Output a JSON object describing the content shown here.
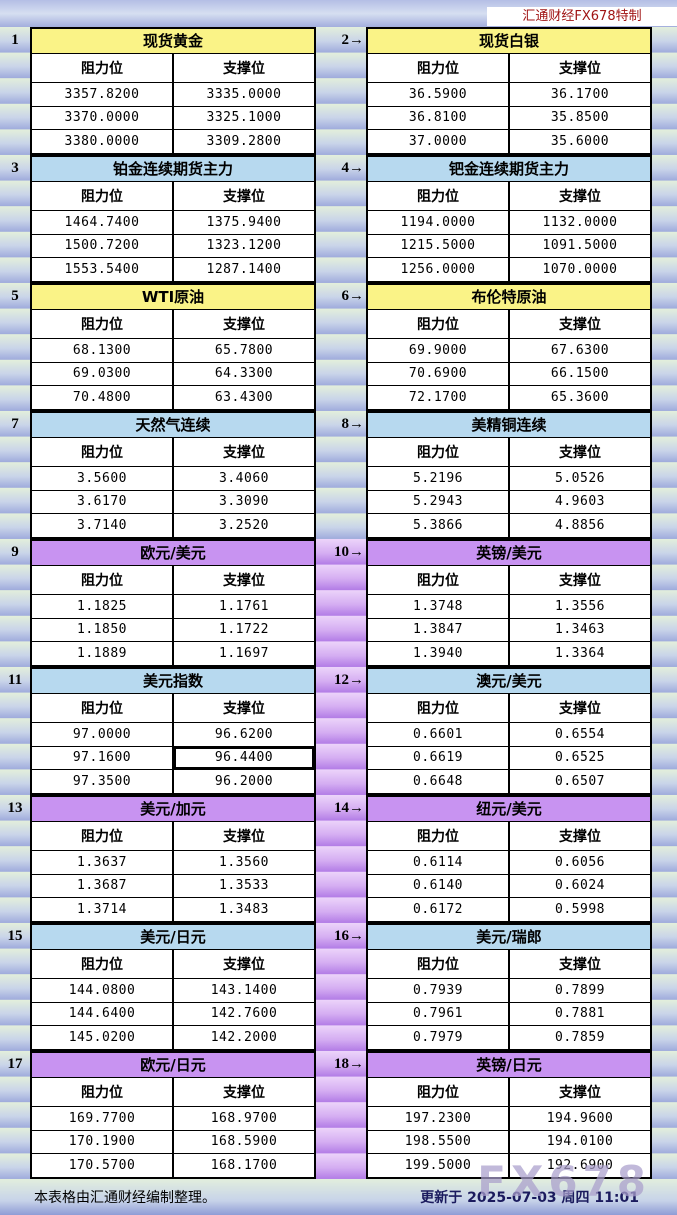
{
  "header": {
    "brand": "汇通财经FX678特制"
  },
  "column_headers": {
    "resistance": "阻力位",
    "support": "支撑位"
  },
  "panels": [
    {
      "num": "1",
      "title": "现货黄金",
      "theme": "yellow",
      "rows": [
        [
          "3357.8200",
          "3335.0000"
        ],
        [
          "3370.0000",
          "3325.1000"
        ],
        [
          "3380.0000",
          "3309.2800"
        ]
      ]
    },
    {
      "num": "2",
      "pointer": "2→",
      "title": "现货白银",
      "theme": "yellow",
      "rows": [
        [
          "36.5900",
          "36.1700"
        ],
        [
          "36.8100",
          "35.8500"
        ],
        [
          "37.0000",
          "35.6000"
        ]
      ]
    },
    {
      "num": "3",
      "title": "铂金连续期货主力",
      "theme": "blue",
      "rows": [
        [
          "1464.7400",
          "1375.9400"
        ],
        [
          "1500.7200",
          "1323.1200"
        ],
        [
          "1553.5400",
          "1287.1400"
        ]
      ]
    },
    {
      "num": "4",
      "pointer": "4→",
      "title": "钯金连续期货主力",
      "theme": "blue",
      "rows": [
        [
          "1194.0000",
          "1132.0000"
        ],
        [
          "1215.5000",
          "1091.5000"
        ],
        [
          "1256.0000",
          "1070.0000"
        ]
      ]
    },
    {
      "num": "5",
      "title": "WTI原油",
      "theme": "yellow",
      "rows": [
        [
          "68.1300",
          "65.7800"
        ],
        [
          "69.0300",
          "64.3300"
        ],
        [
          "70.4800",
          "63.4300"
        ]
      ]
    },
    {
      "num": "6",
      "pointer": "6→",
      "title": "布伦特原油",
      "theme": "yellow",
      "rows": [
        [
          "69.9000",
          "67.6300"
        ],
        [
          "70.6900",
          "66.1500"
        ],
        [
          "72.1700",
          "65.3600"
        ]
      ]
    },
    {
      "num": "7",
      "title": "天然气连续",
      "theme": "blue",
      "rows": [
        [
          "3.5600",
          "3.4060"
        ],
        [
          "3.6170",
          "3.3090"
        ],
        [
          "3.7140",
          "3.2520"
        ]
      ]
    },
    {
      "num": "8",
      "pointer": "8→",
      "title": "美精铜连续",
      "theme": "blue",
      "rows": [
        [
          "5.2196",
          "5.0526"
        ],
        [
          "5.2943",
          "4.9603"
        ],
        [
          "5.3866",
          "4.8856"
        ]
      ]
    },
    {
      "num": "9",
      "title": "欧元/美元",
      "theme": "purple",
      "rows": [
        [
          "1.1825",
          "1.1761"
        ],
        [
          "1.1850",
          "1.1722"
        ],
        [
          "1.1889",
          "1.1697"
        ]
      ]
    },
    {
      "num": "10",
      "pointer": "10→",
      "title": "英镑/美元",
      "theme": "purple",
      "rows": [
        [
          "1.3748",
          "1.3556"
        ],
        [
          "1.3847",
          "1.3463"
        ],
        [
          "1.3940",
          "1.3364"
        ]
      ]
    },
    {
      "num": "11",
      "title": "美元指数",
      "theme": "blue",
      "rows": [
        [
          "97.0000",
          "96.6200"
        ],
        [
          "97.1600",
          "96.4400"
        ],
        [
          "97.3500",
          "96.2000"
        ]
      ]
    },
    {
      "num": "12",
      "pointer": "12→",
      "title": "澳元/美元",
      "theme": "blue",
      "rows": [
        [
          "0.6601",
          "0.6554"
        ],
        [
          "0.6619",
          "0.6525"
        ],
        [
          "0.6648",
          "0.6507"
        ]
      ]
    },
    {
      "num": "13",
      "title": "美元/加元",
      "theme": "purple",
      "rows": [
        [
          "1.3637",
          "1.3560"
        ],
        [
          "1.3687",
          "1.3533"
        ],
        [
          "1.3714",
          "1.3483"
        ]
      ]
    },
    {
      "num": "14",
      "pointer": "14→",
      "title": "纽元/美元",
      "theme": "purple",
      "rows": [
        [
          "0.6114",
          "0.6056"
        ],
        [
          "0.6140",
          "0.6024"
        ],
        [
          "0.6172",
          "0.5998"
        ]
      ]
    },
    {
      "num": "15",
      "title": "美元/日元",
      "theme": "blue",
      "rows": [
        [
          "144.0800",
          "143.1400"
        ],
        [
          "144.6400",
          "142.7600"
        ],
        [
          "145.0200",
          "142.2000"
        ]
      ]
    },
    {
      "num": "16",
      "pointer": "16→",
      "title": "美元/瑞郎",
      "theme": "blue",
      "rows": [
        [
          "0.7939",
          "0.7899"
        ],
        [
          "0.7961",
          "0.7881"
        ],
        [
          "0.7979",
          "0.7859"
        ]
      ]
    },
    {
      "num": "17",
      "title": "欧元/日元",
      "theme": "purple",
      "rows": [
        [
          "169.7700",
          "168.9700"
        ],
        [
          "170.1900",
          "168.5900"
        ],
        [
          "170.5700",
          "168.1700"
        ]
      ]
    },
    {
      "num": "18",
      "pointer": "18→",
      "title": "英镑/日元",
      "theme": "purple",
      "rows": [
        [
          "197.2300",
          "194.9600"
        ],
        [
          "198.5500",
          "194.0100"
        ],
        [
          "199.5000",
          "192.6900"
        ]
      ]
    }
  ],
  "middle_strip_themes": [
    "green",
    "green",
    "green",
    "green",
    "purple",
    "purple",
    "purple",
    "purple",
    "purple"
  ],
  "selection": {
    "panel_index": 10,
    "row_index": 1,
    "col_index": 1
  },
  "footer": {
    "note": "本表格由汇通财经编制整理。",
    "updated": "更新于 2025-07-03 周四 11:01",
    "watermark": "FX678"
  },
  "colors": {
    "title_yellow": "#faf387",
    "title_blue": "#b7d9ef",
    "title_purple": "#c893f1",
    "stripe_green_light": "#e3efdb",
    "stripe_green_dark": "#9fabdc",
    "stripe_purple_light": "#ecd4fa",
    "stripe_purple_dark": "#b27ce6",
    "brand_red": "#a01414",
    "updated_navy": "#1b1b5e",
    "watermark": "#aa9fcc"
  }
}
